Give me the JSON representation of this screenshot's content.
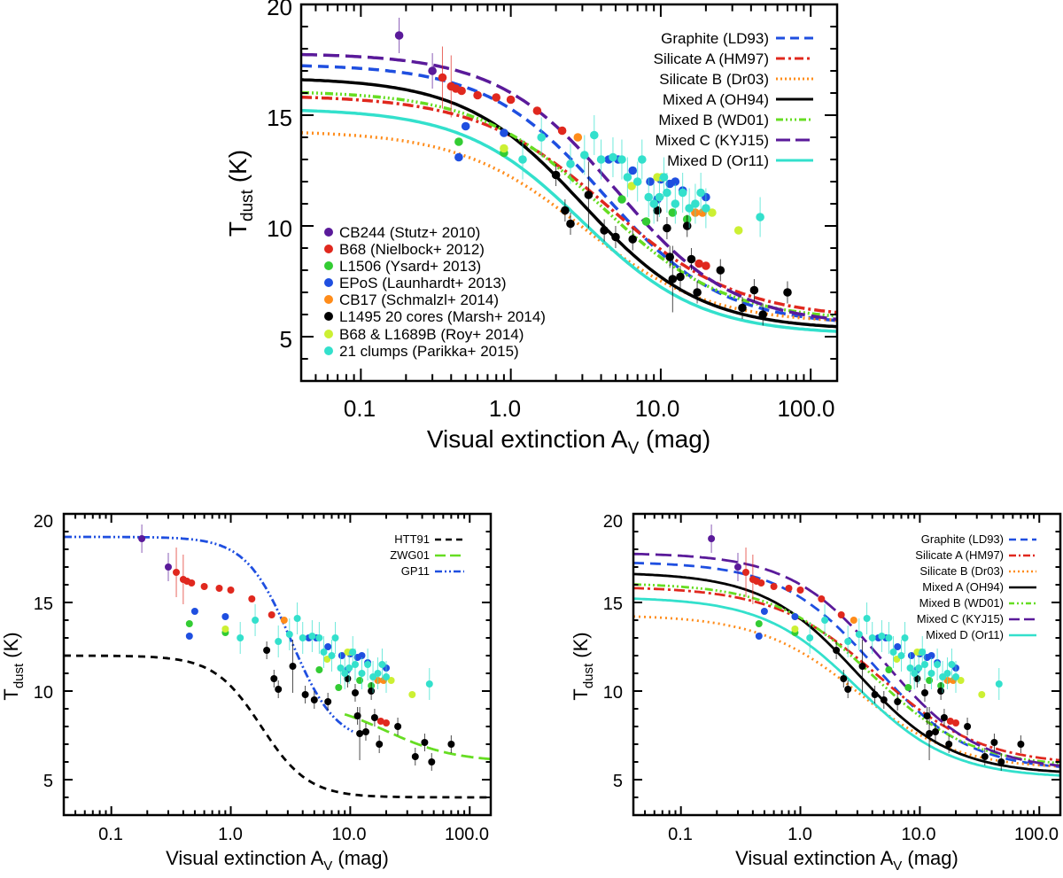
{
  "colors": {
    "graphite": "#1f4fe0",
    "silicateA": "#e0281e",
    "silicateB": "#ff8c1a",
    "mixedA": "#000000",
    "mixedB": "#66dd22",
    "mixedC": "#5a1a9a",
    "mixedD": "#33e0cc",
    "htt": "#000000",
    "zwg": "#66dd22",
    "gp": "#1f4fe0",
    "cb244": "#5a1a9a",
    "b68": "#e0281e",
    "l1506": "#33cc33",
    "epos": "#1f4fe0",
    "cb17": "#ff8c1a",
    "l1495": "#000000",
    "roy": "#ccf033",
    "parikka": "#33e0cc"
  },
  "chart_data": [
    {
      "type": "scatter",
      "id": "top",
      "xlabel": "Visual extinction A",
      "xlabel_sub": "V",
      "xlabel_unit": " (mag)",
      "ylabel": "T",
      "ylabel_sub": "dust",
      "ylabel_unit": " (K)",
      "xscale": "log",
      "xlim": [
        0.04,
        150
      ],
      "ylim": [
        3,
        20
      ],
      "xticks": [
        "0.1",
        "1.0",
        "10.0",
        "100.0"
      ],
      "yticks": [
        "5",
        "10",
        "15",
        "20"
      ],
      "model_legend": [
        "Graphite (LD93)",
        "Silicate A (HM97)",
        "Silicate B (Dr03)",
        "Mixed A (OH94)",
        "Mixed B (WD01)",
        "Mixed C (KYJ15)",
        "Mixed D (Or11)"
      ],
      "data_legend": [
        "CB244 (Stutz+ 2010)",
        "B68 (Nielbock+ 2012)",
        "L1506 (Ysard+ 2013)",
        "EPoS (Launhardt+ 2013)",
        "CB17 (Schmalzl+ 2014)",
        "L1495 20 cores (Marsh+ 2014)",
        "B68 & L1689B (Roy+ 2014)",
        "21 clumps (Parikka+ 2015)"
      ]
    },
    {
      "type": "scatter",
      "id": "bottom-left",
      "xlabel": "Visual extinction A",
      "xlabel_sub": "V",
      "xlabel_unit": " (mag)",
      "ylabel": "T",
      "ylabel_sub": "dust",
      "ylabel_unit": " (K)",
      "xscale": "log",
      "xlim": [
        0.04,
        150
      ],
      "ylim": [
        3,
        20
      ],
      "xticks": [
        "0.1",
        "1.0",
        "10.0",
        "100.0"
      ],
      "yticks": [
        "5",
        "10",
        "15",
        "20"
      ],
      "model_legend": [
        "HTT91",
        "ZWG01",
        "GP11"
      ]
    },
    {
      "type": "scatter",
      "id": "bottom-right",
      "xlabel": "Visual extinction A",
      "xlabel_sub": "V",
      "xlabel_unit": " (mag)",
      "ylabel": "T",
      "ylabel_sub": "dust",
      "ylabel_unit": " (K)",
      "xscale": "log",
      "xlim": [
        0.04,
        150
      ],
      "ylim": [
        3,
        20
      ],
      "xticks": [
        "0.1",
        "1.0",
        "10.0",
        "100.0"
      ],
      "yticks": [
        "5",
        "10",
        "15",
        "20"
      ],
      "model_legend": [
        "Graphite (LD93)",
        "Silicate A (HM97)",
        "Silicate B (Dr03)",
        "Mixed A (OH94)",
        "Mixed B (WD01)",
        "Mixed C (KYJ15)",
        "Mixed D (Or11)"
      ]
    }
  ],
  "observations": {
    "cb244": [
      [
        0.18,
        18.6
      ],
      [
        0.3,
        17.0
      ]
    ],
    "b68": [
      [
        0.35,
        16.7
      ],
      [
        0.4,
        16.3
      ],
      [
        0.43,
        16.2
      ],
      [
        0.47,
        16.1
      ],
      [
        0.6,
        15.9
      ],
      [
        0.8,
        15.8
      ],
      [
        1.0,
        15.7
      ],
      [
        1.5,
        15.2
      ],
      [
        2.2,
        14.3
      ],
      [
        18,
        8.3
      ],
      [
        20,
        8.2
      ]
    ],
    "l1506": [
      [
        0.45,
        13.8
      ],
      [
        0.9,
        13.3
      ],
      [
        5.5,
        11.2
      ],
      [
        8,
        10.2
      ],
      [
        12,
        10.6
      ],
      [
        15,
        10.3
      ]
    ],
    "epos": [
      [
        0.45,
        13.1
      ],
      [
        0.5,
        14.5
      ],
      [
        0.9,
        14.2
      ],
      [
        4.5,
        13.0
      ],
      [
        5.2,
        13.0
      ],
      [
        6.5,
        12.5
      ],
      [
        8.5,
        12.0
      ],
      [
        10,
        12.1
      ],
      [
        11.5,
        11.9
      ],
      [
        12.5,
        12.0
      ],
      [
        14,
        11.6
      ],
      [
        20,
        11.3
      ],
      [
        9.5,
        11.2
      ]
    ],
    "cb17": [
      [
        2.8,
        14.0
      ],
      [
        17,
        10.6
      ],
      [
        19,
        10.6
      ]
    ],
    "l1495": [
      [
        2.0,
        12.3
      ],
      [
        2.3,
        10.7
      ],
      [
        2.5,
        10.1
      ],
      [
        3.3,
        11.4
      ],
      [
        4.2,
        9.8
      ],
      [
        5,
        9.5
      ],
      [
        6.5,
        9.4
      ],
      [
        9.5,
        10.7
      ],
      [
        11,
        9.9
      ],
      [
        11.5,
        8.6
      ],
      [
        12,
        7.6
      ],
      [
        13.5,
        7.7
      ],
      [
        15,
        10.0
      ],
      [
        16,
        8.5
      ],
      [
        17.5,
        7.0
      ],
      [
        25,
        8.0
      ],
      [
        35,
        6.3
      ],
      [
        42,
        7.1
      ],
      [
        48,
        6.0
      ],
      [
        70,
        7.0
      ]
    ],
    "roy": [
      [
        0.9,
        13.5
      ],
      [
        6.4,
        11.8
      ],
      [
        9.5,
        12.2
      ],
      [
        10.2,
        12.2
      ],
      [
        22,
        10.6
      ],
      [
        33,
        9.8
      ]
    ],
    "parikka": [
      [
        1.2,
        13.0
      ],
      [
        1.6,
        14.0
      ],
      [
        2.5,
        12.8
      ],
      [
        3.1,
        13.2
      ],
      [
        3.6,
        14.1
      ],
      [
        4.0,
        13.0
      ],
      [
        4.8,
        13.1
      ],
      [
        5.5,
        13.0
      ],
      [
        6.0,
        12.2
      ],
      [
        7.0,
        12.0
      ],
      [
        7.5,
        13.0
      ],
      [
        8.3,
        11.3
      ],
      [
        9.0,
        11.0
      ],
      [
        9.8,
        11.3
      ],
      [
        10.5,
        12.2
      ],
      [
        11,
        11.5
      ],
      [
        12.5,
        11.0
      ],
      [
        14,
        11.5
      ],
      [
        15.5,
        10.8
      ],
      [
        17,
        11.0
      ],
      [
        18.5,
        11.5
      ],
      [
        20,
        10.8
      ],
      [
        46,
        10.4
      ]
    ]
  },
  "model_params": {
    "graphite": {
      "t0": 17.3,
      "t1": 5.5,
      "ac": 4.2,
      "n": 1.1
    },
    "silicateA": {
      "t0": 15.9,
      "t1": 5.8,
      "ac": 4.5,
      "n": 1.0
    },
    "silicateB": {
      "t0": 14.3,
      "t1": 5.6,
      "ac": 3.0,
      "n": 1.05
    },
    "mixedA": {
      "t0": 16.7,
      "t1": 5.3,
      "ac": 3.0,
      "n": 1.1
    },
    "mixedB": {
      "t0": 16.1,
      "t1": 5.7,
      "ac": 4.0,
      "n": 1.05
    },
    "mixedC": {
      "t0": 17.8,
      "t1": 5.5,
      "ac": 5.0,
      "n": 1.1
    },
    "mixedD": {
      "t0": 15.3,
      "t1": 5.1,
      "ac": 3.0,
      "n": 1.1
    },
    "htt": {
      "t0": 12.0,
      "t1": 4.0,
      "ac": 1.8,
      "n": 2.2
    },
    "zwg": {
      "t0": 9.5,
      "t1": 6.0,
      "ac": 20,
      "n": 1.5
    },
    "gp": {
      "t0": 18.7,
      "t1": 7.0,
      "ac": 3.2,
      "n": 2.3
    }
  }
}
